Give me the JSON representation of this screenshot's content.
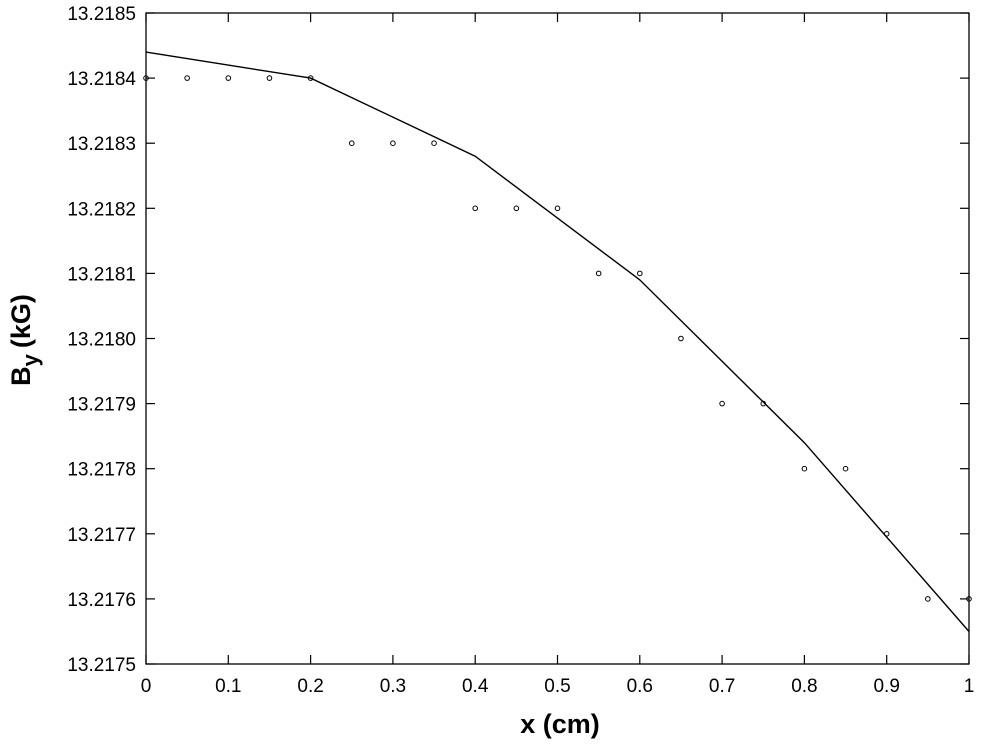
{
  "chart_data": {
    "type": "scatter",
    "title": "",
    "xlabel": "x (cm)",
    "ylabel_main": "B",
    "ylabel_sub": "y",
    "ylabel_unit": "(kG)",
    "xlim": [
      0,
      1
    ],
    "ylim": [
      13.2175,
      13.2185
    ],
    "x_ticks": [
      0,
      0.1,
      0.2,
      0.3,
      0.4,
      0.5,
      0.6,
      0.7,
      0.8,
      0.9,
      1
    ],
    "x_tick_labels": [
      "0",
      "0.1",
      "0.2",
      "0.3",
      "0.4",
      "0.5",
      "0.6",
      "0.7",
      "0.8",
      "0.9",
      "1"
    ],
    "y_ticks": [
      13.2175,
      13.2176,
      13.2177,
      13.2178,
      13.2179,
      13.218,
      13.2181,
      13.2182,
      13.2183,
      13.2184,
      13.2185
    ],
    "y_tick_labels": [
      "13.2175",
      "13.2176",
      "13.2177",
      "13.2178",
      "13.2179",
      "13.2180",
      "13.2181",
      "13.2182",
      "13.2183",
      "13.2184",
      "13.2185"
    ],
    "grid": false,
    "series": [
      {
        "kind": "markers",
        "marker": "open-circle",
        "x": [
          0,
          0.05,
          0.1,
          0.15,
          0.2,
          0.25,
          0.3,
          0.35,
          0.4,
          0.45,
          0.5,
          0.55,
          0.6,
          0.65,
          0.7,
          0.75,
          0.8,
          0.85,
          0.9,
          0.95,
          1
        ],
        "y": [
          13.2184,
          13.2184,
          13.2184,
          13.2184,
          13.2184,
          13.2183,
          13.2183,
          13.2183,
          13.2182,
          13.2182,
          13.2182,
          13.2181,
          13.2181,
          13.218,
          13.2179,
          13.2179,
          13.2178,
          13.2178,
          13.2177,
          13.2176,
          13.2176
        ]
      },
      {
        "kind": "line",
        "x": [
          0,
          0.2,
          0.4,
          0.6,
          0.8,
          1
        ],
        "y": [
          13.21844,
          13.2184,
          13.21828,
          13.21809,
          13.21784,
          13.21755
        ]
      }
    ],
    "colors": {
      "line": "#000000",
      "marker": "#000000",
      "axes": "#000000"
    }
  }
}
